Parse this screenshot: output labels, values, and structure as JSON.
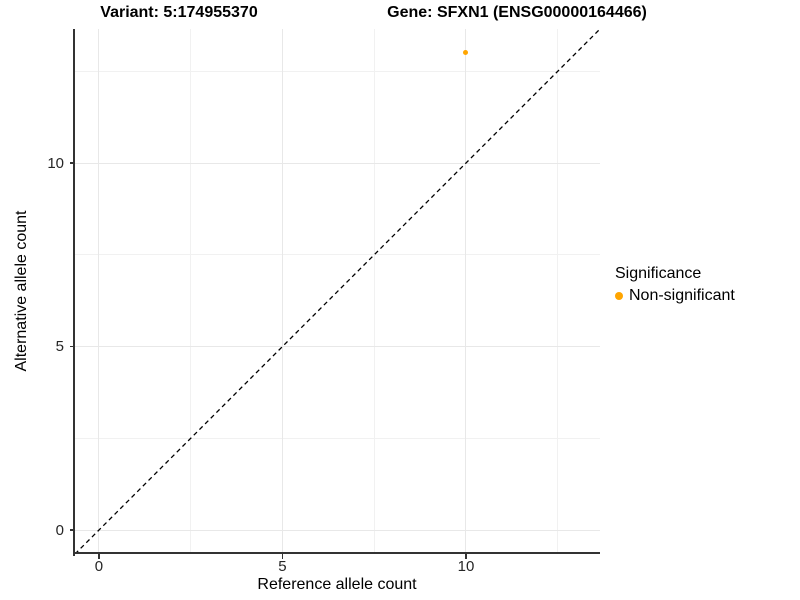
{
  "chart_data": {
    "type": "scatter",
    "title_left": "Variant: 5:174955370",
    "title_right": "Gene: SFXN1 (ENSG00000164466)",
    "xlabel": "Reference allele count",
    "ylabel": "Alternative allele count",
    "xlim": [
      -0.65,
      13.65
    ],
    "ylim": [
      -0.65,
      13.65
    ],
    "x_ticks": [
      0,
      5,
      10
    ],
    "y_ticks": [
      0,
      5,
      10
    ],
    "x_minor_ticks": [
      2.5,
      7.5,
      12.5
    ],
    "y_minor_ticks": [
      2.5,
      7.5,
      12.5
    ],
    "grid": "major and minor gridlines, white background",
    "points": [
      {
        "x": 10,
        "y": 13,
        "series": "Non-significant",
        "color": "#FFA500"
      }
    ],
    "reference_line": {
      "kind": "identity",
      "slope": 1,
      "intercept": 0,
      "style": "dashed",
      "color": "#000000"
    },
    "legend": {
      "title": "Significance",
      "position": "right",
      "entries": [
        {
          "label": "Non-significant",
          "color": "#FFA500"
        }
      ]
    }
  },
  "colors": {
    "point_orange": "#FFA500",
    "grid_major": "#E8E8E8",
    "grid_minor": "#F1F1F1",
    "axis": "#333333",
    "dashed_line": "#000000",
    "background": "#FFFFFF"
  }
}
